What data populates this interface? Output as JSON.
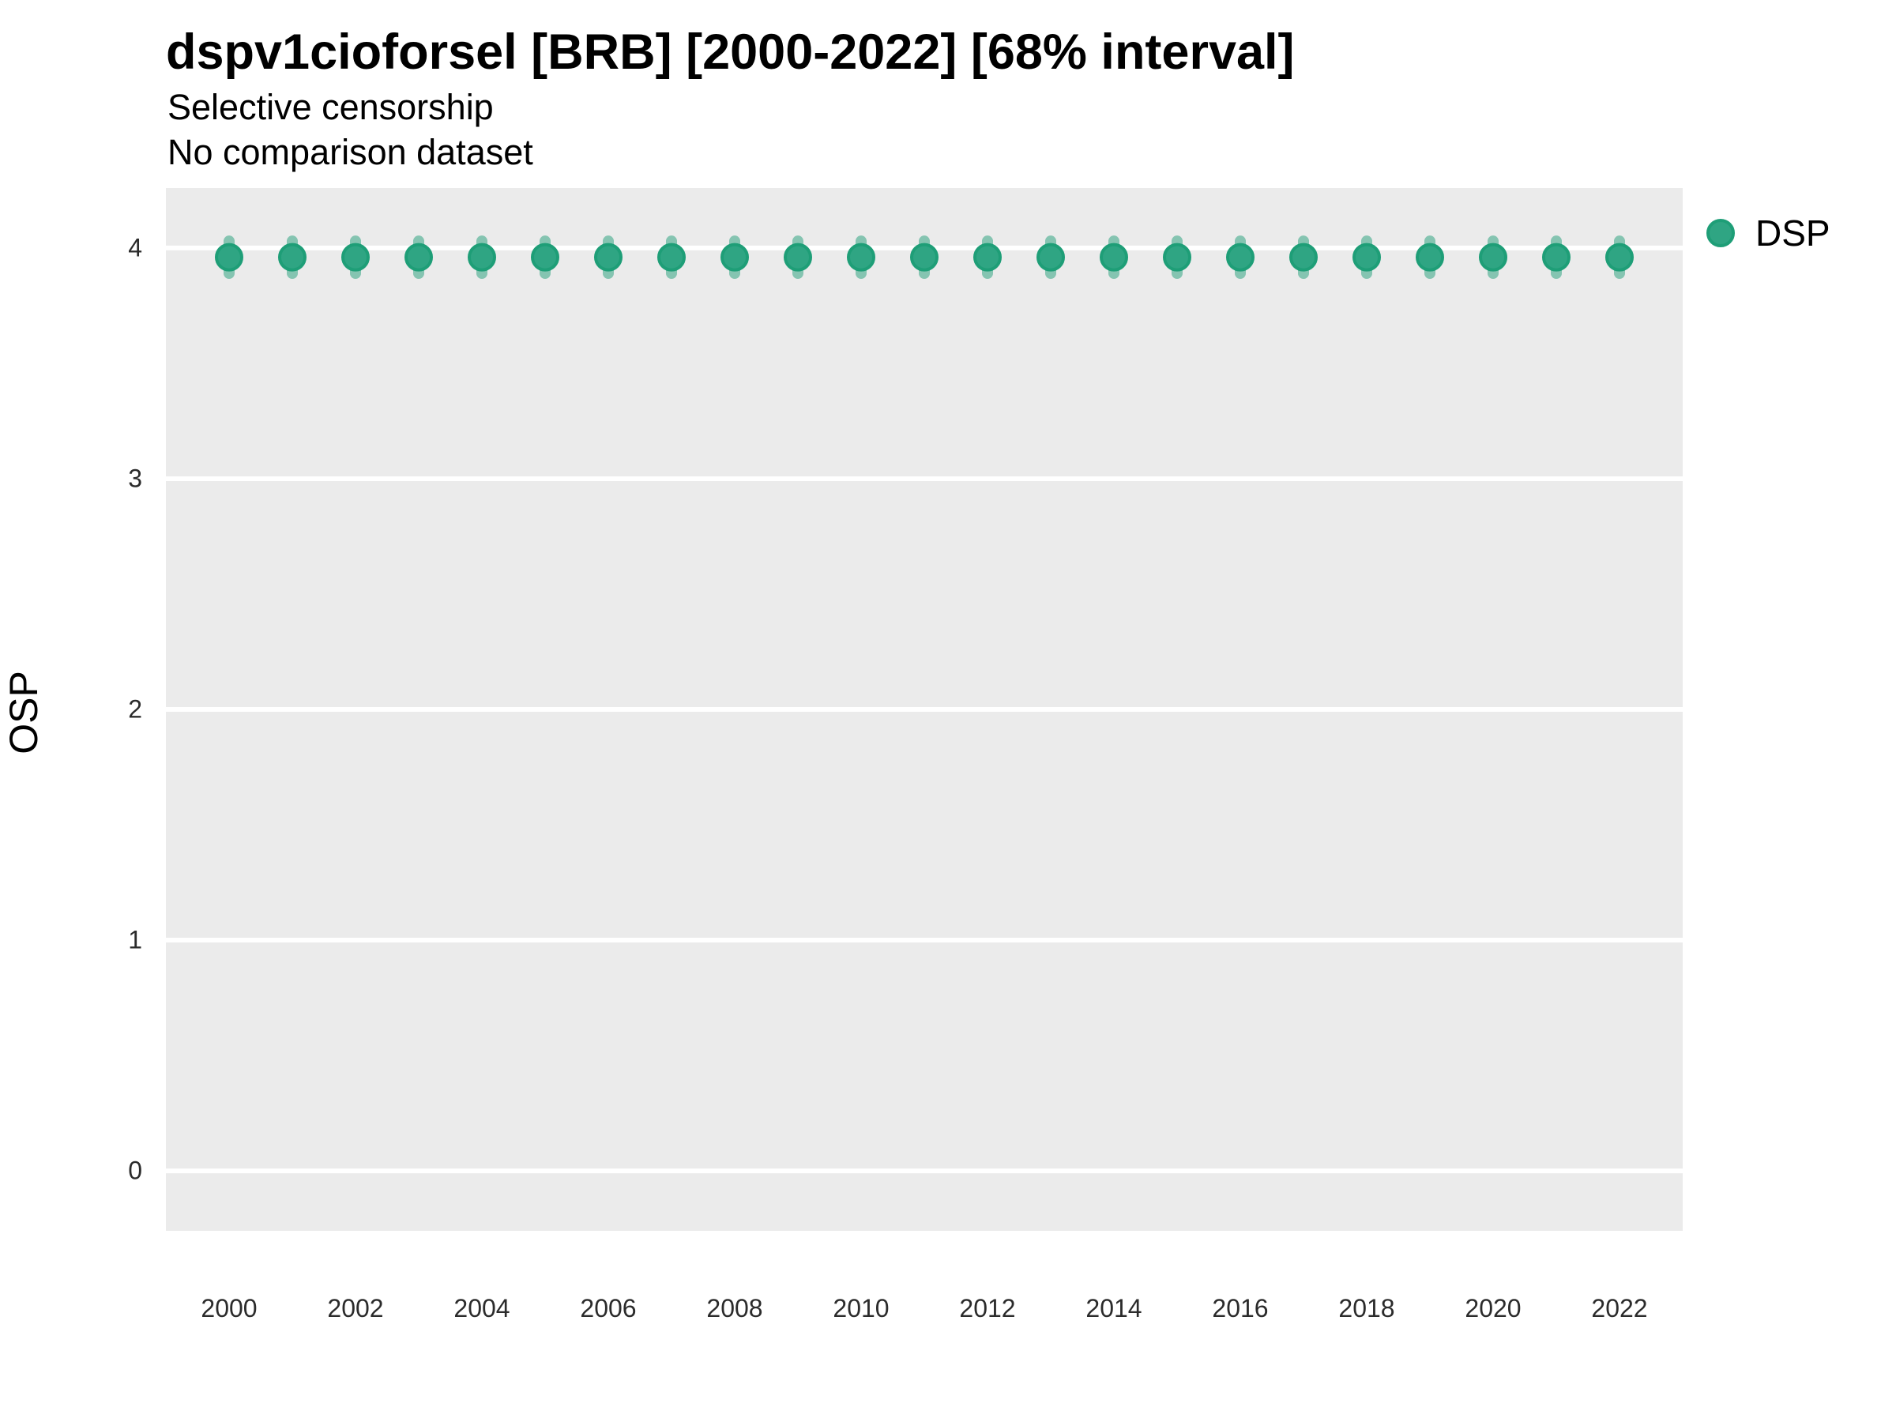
{
  "chart_data": {
    "type": "scatter",
    "title": "dspv1cioforsel [BRB] [2000-2022] [68% interval]",
    "subtitle1": "Selective censorship",
    "subtitle2": "No comparison dataset",
    "xlabel": "",
    "ylabel": "OSP",
    "x": [
      2000,
      2001,
      2002,
      2003,
      2004,
      2005,
      2006,
      2007,
      2008,
      2009,
      2010,
      2011,
      2012,
      2013,
      2014,
      2015,
      2016,
      2017,
      2018,
      2019,
      2020,
      2021,
      2022
    ],
    "series": [
      {
        "name": "DSP",
        "values": [
          3.96,
          3.96,
          3.96,
          3.96,
          3.96,
          3.96,
          3.96,
          3.96,
          3.96,
          3.96,
          3.96,
          3.96,
          3.96,
          3.96,
          3.96,
          3.96,
          3.96,
          3.96,
          3.96,
          3.96,
          3.96,
          3.96,
          3.96
        ],
        "interval_low": [
          3.89,
          3.89,
          3.89,
          3.89,
          3.89,
          3.89,
          3.89,
          3.89,
          3.89,
          3.89,
          3.89,
          3.89,
          3.89,
          3.89,
          3.89,
          3.89,
          3.89,
          3.89,
          3.89,
          3.89,
          3.89,
          3.89,
          3.89
        ],
        "interval_high": [
          4.03,
          4.03,
          4.03,
          4.03,
          4.03,
          4.03,
          4.03,
          4.03,
          4.03,
          4.03,
          4.03,
          4.03,
          4.03,
          4.03,
          4.03,
          4.03,
          4.03,
          4.03,
          4.03,
          4.03,
          4.03,
          4.03,
          4.03
        ],
        "point_color": "#2FA583",
        "point_stroke_color": "#1E9E77",
        "interval_color": "rgba(31,158,119,0.5)"
      }
    ],
    "x_ticks": [
      2000,
      2002,
      2004,
      2006,
      2008,
      2010,
      2012,
      2014,
      2016,
      2018,
      2020,
      2022
    ],
    "y_ticks": [
      0,
      1,
      2,
      3,
      4
    ],
    "xlim": [
      1999,
      2023
    ],
    "ylim": [
      -0.26,
      4.26
    ],
    "interval_label": "68% interval",
    "legend_position": "right",
    "panel_bg": "#EBEBEB",
    "grid_color": "#FFFFFF",
    "grid": "major horizontal only"
  }
}
